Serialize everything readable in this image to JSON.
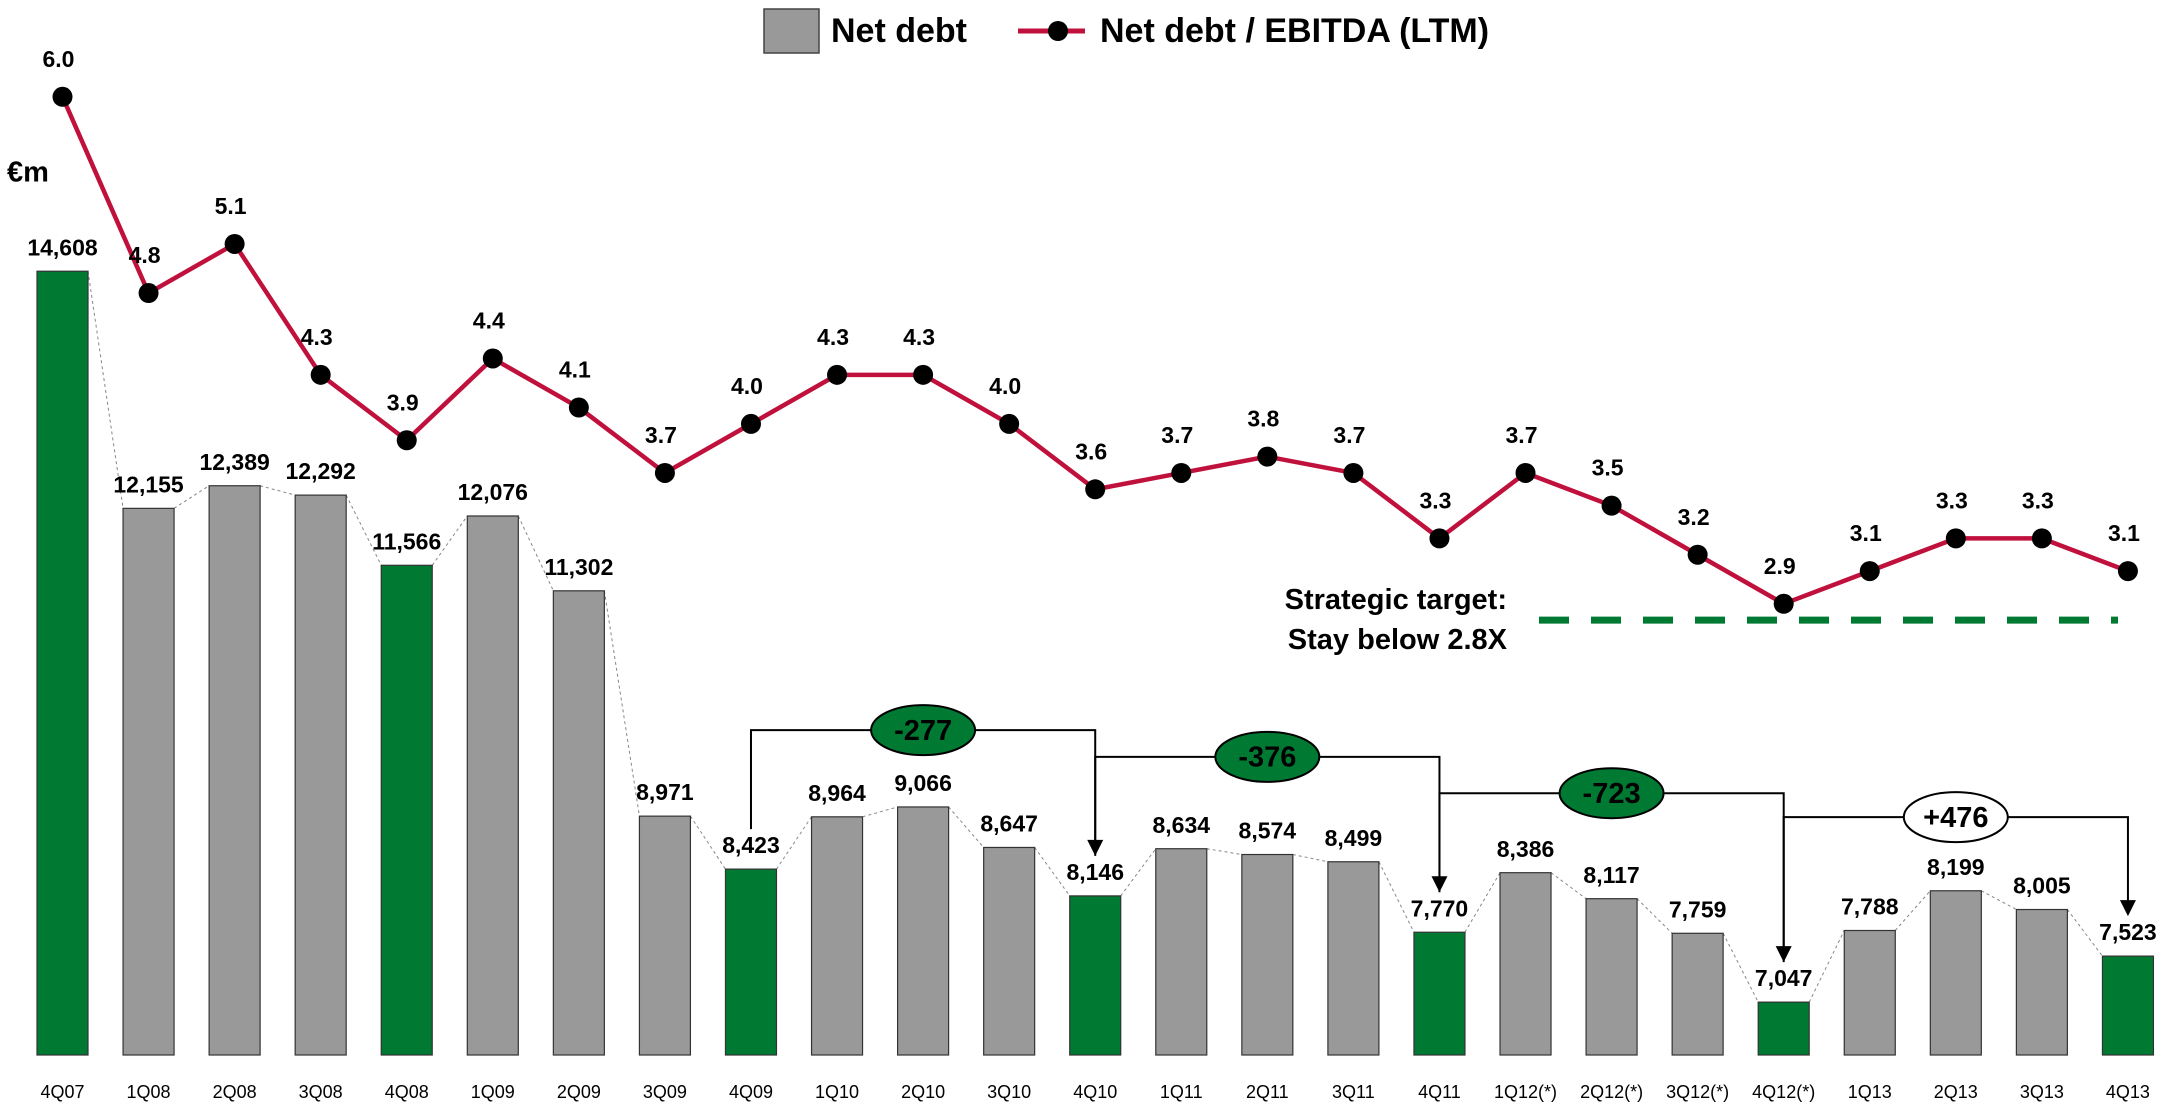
{
  "chart_data": {
    "type": "bar_line",
    "unit_label": "€m",
    "categories": [
      "4Q07",
      "1Q08",
      "2Q08",
      "3Q08",
      "4Q08",
      "1Q09",
      "2Q09",
      "3Q09",
      "4Q09",
      "1Q10",
      "2Q10",
      "3Q10",
      "4Q10",
      "1Q11",
      "2Q11",
      "3Q11",
      "4Q11",
      "1Q12(*)",
      "2Q12(*)",
      "3Q12(*)",
      "4Q12(*)",
      "1Q13",
      "2Q13",
      "3Q13",
      "4Q13"
    ],
    "series": [
      {
        "name": "Net debt",
        "type": "bar",
        "color": "#999999",
        "colors": [
          "#007a33",
          "#999999",
          "#999999",
          "#999999",
          "#007a33",
          "#999999",
          "#999999",
          "#999999",
          "#007a33",
          "#999999",
          "#999999",
          "#999999",
          "#007a33",
          "#999999",
          "#999999",
          "#999999",
          "#007a33",
          "#999999",
          "#999999",
          "#999999",
          "#007a33",
          "#999999",
          "#999999",
          "#999999",
          "#007a33"
        ],
        "values": [
          14608,
          12155,
          12389,
          12292,
          11566,
          12076,
          11302,
          8971,
          8423,
          8964,
          9066,
          8647,
          8146,
          8634,
          8574,
          8499,
          7770,
          8386,
          8117,
          7759,
          7047,
          7788,
          8199,
          8005,
          7523
        ],
        "value_labels": [
          "14,608",
          "12,155",
          "12,389",
          "12,292",
          "11,566",
          "12,076",
          "11,302",
          "8,971",
          "8,423",
          "8,964",
          "9,066",
          "8,647",
          "8,146",
          "8,634",
          "8,574",
          "8,499",
          "7,770",
          "8,386",
          "8,117",
          "7,759",
          "7,047",
          "7,788",
          "8,199",
          "8,005",
          "7,523"
        ]
      },
      {
        "name": "Net debt / EBITDA (LTM)",
        "type": "line",
        "axis": "y2",
        "color": "#c0103c",
        "values": [
          6.0,
          4.8,
          5.1,
          4.3,
          3.9,
          4.4,
          4.1,
          3.7,
          4.0,
          4.3,
          4.3,
          4.0,
          3.6,
          3.7,
          3.8,
          3.7,
          3.3,
          3.7,
          3.5,
          3.2,
          2.9,
          3.1,
          3.3,
          3.3,
          3.1
        ],
        "value_labels": [
          "6.0",
          "4.8",
          "5.1",
          "4.3",
          "3.9",
          "4.4",
          "4.1",
          "3.7",
          "4.0",
          "4.3",
          "4.3",
          "4.0",
          "3.6",
          "3.7",
          "3.8",
          "3.7",
          "3.3",
          "3.7",
          "3.5",
          "3.2",
          "2.9",
          "3.1",
          "3.3",
          "3.3",
          "3.1"
        ]
      }
    ],
    "ylim": [
      6500,
      17000
    ],
    "y2lim": [
      2,
      6.5
    ],
    "target": {
      "value": 2.8,
      "color": "#007a33",
      "label": [
        "Strategic target:",
        "Stay below 2.8X"
      ]
    },
    "annotations": [
      {
        "text": "-277",
        "from": "4Q09",
        "to": "4Q10",
        "color": "#007a33"
      },
      {
        "text": "-376",
        "from": "4Q10",
        "to": "4Q11",
        "color": "#007a33"
      },
      {
        "text": "-723",
        "from": "4Q11",
        "to": "4Q12(*)",
        "color": "#007a33"
      },
      {
        "text": "+476",
        "from": "4Q12(*)",
        "to": "4Q13",
        "color": "#ffffff"
      }
    ]
  }
}
